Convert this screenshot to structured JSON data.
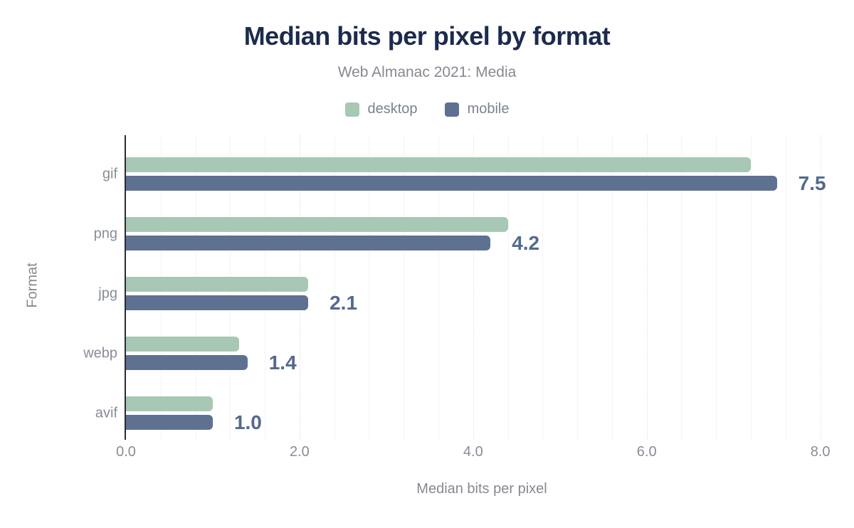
{
  "header": {
    "title": "Median bits per pixel by format",
    "subtitle": "Web Almanac 2021: Media"
  },
  "legend": [
    {
      "label": "desktop",
      "color": "#a7c8b4"
    },
    {
      "label": "mobile",
      "color": "#5e7190"
    }
  ],
  "colors": {
    "title": "#1c2b4d",
    "desktop_bar": "#a7c8b4",
    "mobile_bar": "#5e7190",
    "value_label": "#54698e",
    "axis_text": "#878d96",
    "axis_line": "#2a2a31"
  },
  "chart_data": {
    "type": "bar",
    "orientation": "horizontal",
    "title": "Median bits per pixel by format",
    "subtitle": "Web Almanac 2021: Media",
    "xlabel": "Median bits per pixel",
    "ylabel": "Format",
    "categories": [
      "gif",
      "png",
      "jpg",
      "webp",
      "avif"
    ],
    "series": [
      {
        "name": "desktop",
        "color": "#a7c8b4",
        "values": [
          7.2,
          4.4,
          2.1,
          1.3,
          1.0
        ]
      },
      {
        "name": "mobile",
        "color": "#5e7190",
        "values": [
          7.5,
          4.2,
          2.1,
          1.4,
          1.0
        ]
      }
    ],
    "value_labels": [
      "7.5",
      "4.2",
      "2.1",
      "1.4",
      "1.0"
    ],
    "value_labels_series": "mobile",
    "xlim": [
      0,
      8.2
    ],
    "xtick_values": [
      0,
      2,
      4,
      6,
      8
    ],
    "xtick_labels": [
      "0.0",
      "2.0",
      "4.0",
      "6.0",
      "8.0"
    ],
    "grid": true,
    "grid_minor_step": 0.4,
    "legend_position": "top"
  }
}
